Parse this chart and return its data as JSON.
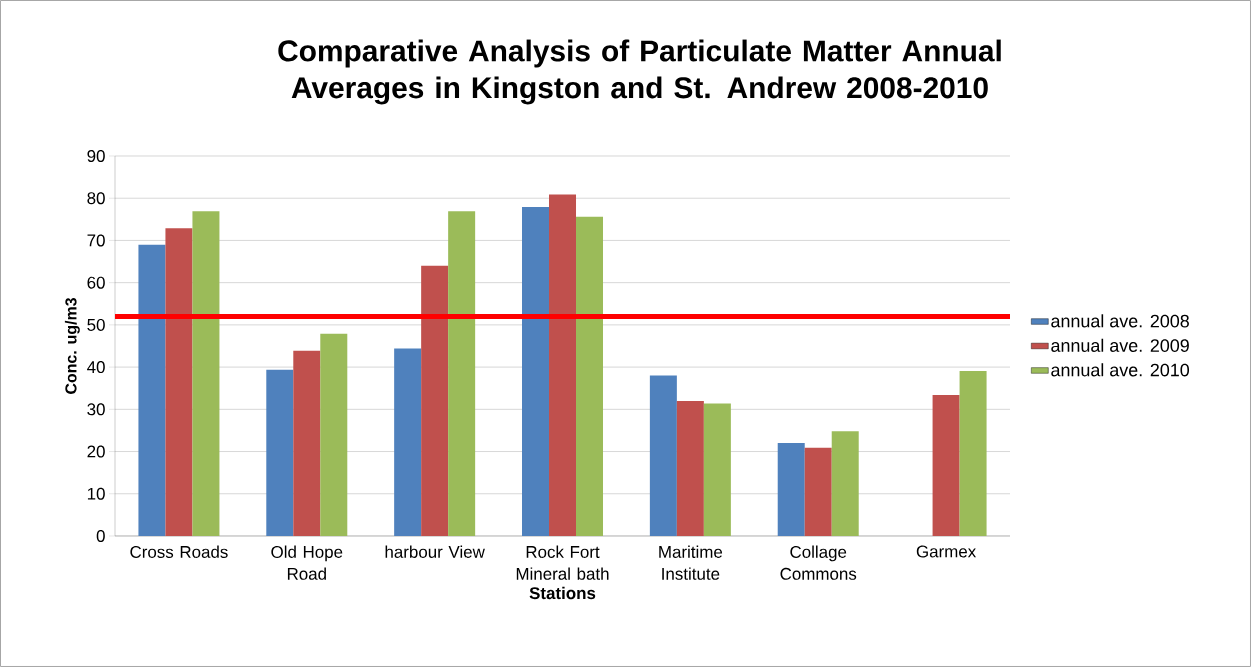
{
  "chart_data": {
    "type": "bar",
    "title": "Comparative Analysis of Particulate Matter Annual Averages in Kingston and St. Andrew 2008-2010",
    "xlabel": "Stations",
    "ylabel": "Conc. ug/m3",
    "categories": [
      "Cross Roads",
      "Old Hope Road",
      "harbour View",
      "Rock Fort Mineral bath",
      "Maritime Institute",
      "Collage Commons",
      "Garmex"
    ],
    "series": [
      {
        "name": "annual ave. 2008",
        "color": "#4f81bd",
        "values": [
          69,
          39.4,
          44.4,
          77.9,
          38,
          22,
          null
        ]
      },
      {
        "name": "annual ave. 2009",
        "color": "#c0504d",
        "values": [
          72.9,
          43.9,
          64,
          80.9,
          32,
          20.9,
          33.4
        ]
      },
      {
        "name": "annual ave. 2010",
        "color": "#9bbb59",
        "values": [
          76.9,
          47.9,
          76.9,
          75.6,
          31.4,
          24.8,
          39.1
        ]
      }
    ],
    "ylim": [
      0,
      90
    ],
    "yticks": [
      0,
      10,
      20,
      30,
      40,
      50,
      60,
      70,
      80,
      90
    ],
    "ref_lines": [
      {
        "axis": "y",
        "value": 52,
        "color": "#ff0000"
      }
    ],
    "grid": "y",
    "legend": "right"
  }
}
